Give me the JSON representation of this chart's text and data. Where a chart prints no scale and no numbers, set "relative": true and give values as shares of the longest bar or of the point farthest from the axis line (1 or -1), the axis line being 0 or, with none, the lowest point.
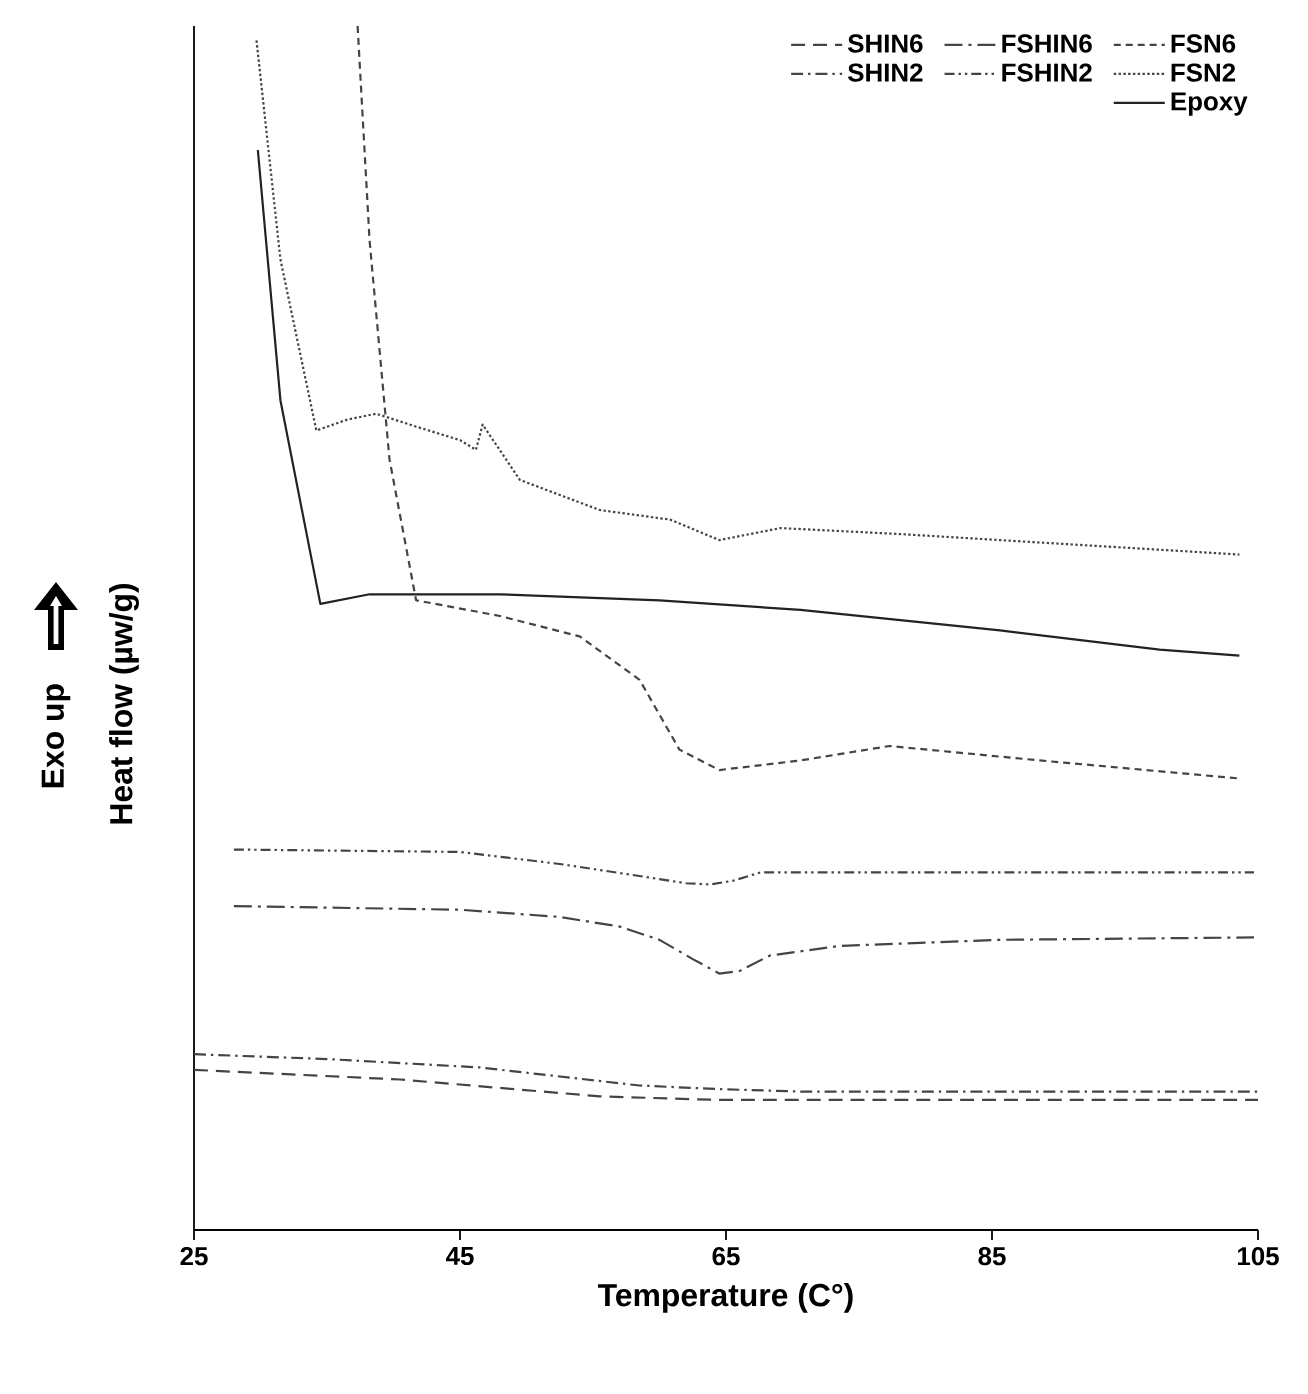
{
  "chart_data": {
    "type": "line",
    "relative": true,
    "xlabel": "Temperature (C°)",
    "ylabel": "Heat flow (µw/g)",
    "annotations": [
      "Exo up"
    ],
    "xlim": [
      25,
      105
    ],
    "xticks": [
      25,
      45,
      65,
      85,
      105
    ],
    "legend": "top right",
    "series": [
      {
        "name": "SHIN6",
        "color": "#444444",
        "line_style": "dashed",
        "x": [
          25,
          40.5,
          55.5,
          64.5,
          75,
          105
        ],
        "values": [
          0.133,
          0.125,
          0.111,
          0.108,
          0.108,
          0.108
        ]
      },
      {
        "name": "FSHIN6",
        "color": "#444444",
        "line_style": "loosely dashdot",
        "x": [
          28,
          45,
          52.5,
          57,
          60,
          62.5,
          64.5,
          66,
          68.3,
          73.6,
          85.6,
          104.7
        ],
        "values": [
          0.269,
          0.266,
          0.26,
          0.252,
          0.241,
          0.225,
          0.213,
          0.215,
          0.228,
          0.236,
          0.241,
          0.243
        ]
      },
      {
        "name": "FSN6",
        "color": "#444444",
        "line_style": "densely dashed",
        "x": [
          37.3,
          38.2,
          39.7,
          41.7,
          48,
          54,
          58.5,
          61.5,
          64.5,
          70.6,
          77.3,
          88.6,
          103.6
        ],
        "values": [
          1.0,
          0.822,
          0.64,
          0.523,
          0.51,
          0.493,
          0.457,
          0.399,
          0.382,
          0.39,
          0.402,
          0.39,
          0.375
        ]
      },
      {
        "name": "SHIN2",
        "color": "#444444",
        "line_style": "dashdot",
        "x": [
          25,
          35,
          46.5,
          58.5,
          64.5,
          70.6,
          105
        ],
        "values": [
          0.146,
          0.142,
          0.135,
          0.12,
          0.117,
          0.115,
          0.115
        ]
      },
      {
        "name": "FSHIN2",
        "color": "#444444",
        "line_style": "dashdotdot",
        "x": [
          28,
          45,
          52.5,
          58.5,
          62,
          63.8,
          65.5,
          67.6,
          78.1,
          104.7
        ],
        "values": [
          0.316,
          0.314,
          0.304,
          0.294,
          0.288,
          0.287,
          0.29,
          0.297,
          0.297,
          0.297
        ]
      },
      {
        "name": "FSN2",
        "color": "#444444",
        "line_style": "dotted",
        "x": [
          29.7,
          31.5,
          34.2,
          36.5,
          38.7,
          41.2,
          45,
          46.2,
          46.7,
          49.5,
          55.5,
          60.8,
          64.5,
          69.1,
          78.1,
          103.6
        ],
        "values": [
          0.988,
          0.806,
          0.664,
          0.673,
          0.678,
          0.669,
          0.656,
          0.648,
          0.669,
          0.623,
          0.598,
          0.59,
          0.573,
          0.583,
          0.578,
          0.561
        ]
      },
      {
        "name": "Epoxy",
        "color": "#222222",
        "line_style": "solid",
        "x": [
          29.8,
          31.5,
          34.5,
          38.2,
          48,
          60,
          70.6,
          85.6,
          97.6,
          103.6
        ],
        "values": [
          0.897,
          0.689,
          0.52,
          0.528,
          0.528,
          0.523,
          0.515,
          0.498,
          0.482,
          0.477
        ]
      }
    ]
  }
}
